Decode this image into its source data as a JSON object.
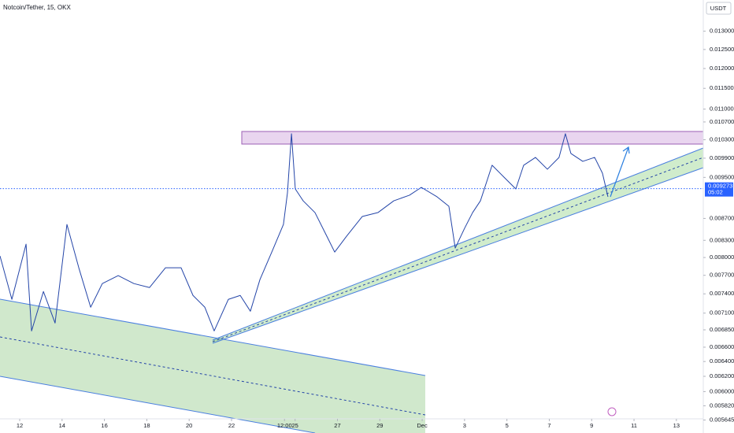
{
  "chart_data": {
    "type": "line",
    "title": "Notcoin/Tether, 15, OKX",
    "currency_button": "USDT",
    "last_price": 0.009273,
    "countdown": "05:02",
    "log_scale": true,
    "color": "#2445a8",
    "xlim": [
      -0.93,
      32.27
    ],
    "ylim": [
      0.00549,
      0.0139
    ],
    "xticks": [
      {
        "value": 0,
        "label": "12"
      },
      {
        "value": 2,
        "label": "14"
      },
      {
        "value": 4,
        "label": "16"
      },
      {
        "value": 6,
        "label": "18"
      },
      {
        "value": 8,
        "label": "20"
      },
      {
        "value": 10,
        "label": "22"
      },
      {
        "value": 12.5,
        "label": "12:00"
      },
      {
        "value": 13,
        "label": "25"
      },
      {
        "value": 15,
        "label": "27"
      },
      {
        "value": 17,
        "label": "29"
      },
      {
        "value": 19,
        "label": "Dec"
      },
      {
        "value": 21,
        "label": "3"
      },
      {
        "value": 23,
        "label": "5"
      },
      {
        "value": 25,
        "label": "7"
      },
      {
        "value": 27,
        "label": "9"
      },
      {
        "value": 29,
        "label": "11"
      },
      {
        "value": 31,
        "label": "13"
      }
    ],
    "yticks": [
      {
        "value": 0.013,
        "label": "0.013000"
      },
      {
        "value": 0.0125,
        "label": "0.012500"
      },
      {
        "value": 0.012,
        "label": "0.012000"
      },
      {
        "value": 0.0115,
        "label": "0.011500"
      },
      {
        "value": 0.011,
        "label": "0.011000"
      },
      {
        "value": 0.0107,
        "label": "0.010700"
      },
      {
        "value": 0.0103,
        "label": "0.010300"
      },
      {
        "value": 0.0099,
        "label": "0.009900"
      },
      {
        "value": 0.0095,
        "label": "0.009500"
      },
      {
        "value": 0.0087,
        "label": "0.008700"
      },
      {
        "value": 0.0083,
        "label": "0.008300"
      },
      {
        "value": 0.008,
        "label": "0.008000"
      },
      {
        "value": 0.0077,
        "label": "0.007700"
      },
      {
        "value": 0.0074,
        "label": "0.007400"
      },
      {
        "value": 0.0071,
        "label": "0.007100"
      },
      {
        "value": 0.00685,
        "label": "0.006850"
      },
      {
        "value": 0.0066,
        "label": "0.006600"
      },
      {
        "value": 0.0064,
        "label": "0.006400"
      },
      {
        "value": 0.0062,
        "label": "0.006200"
      },
      {
        "value": 0.006,
        "label": "0.006000"
      },
      {
        "value": 0.00582,
        "label": "0.005820"
      },
      {
        "value": 0.005645,
        "label": "0.005645"
      }
    ],
    "x": [
      -0.93,
      -0.37,
      0.3,
      0.56,
      1.12,
      1.67,
      2.23,
      2.79,
      3.35,
      3.9,
      4.65,
      5.39,
      6.13,
      6.88,
      7.62,
      8.18,
      8.74,
      9.18,
      9.85,
      10.41,
      10.89,
      11.34,
      11.9,
      12.45,
      12.64,
      12.83,
      13.01,
      13.38,
      13.94,
      14.5,
      14.87,
      15.43,
      16.17,
      16.91,
      17.66,
      18.4,
      18.96,
      19.7,
      20.26,
      20.56,
      21.0,
      21.38,
      21.75,
      22.3,
      22.86,
      23.42,
      23.79,
      24.35,
      24.91,
      25.46,
      25.76,
      26.02,
      26.58,
      27.14,
      27.51,
      27.77
    ],
    "values": [
      0.008026,
      0.007313,
      0.008233,
      0.006834,
      0.007437,
      0.006951,
      0.008588,
      0.007825,
      0.00719,
      0.007565,
      0.007695,
      0.007565,
      0.007501,
      0.007825,
      0.007825,
      0.007375,
      0.00719,
      0.006834,
      0.007313,
      0.007375,
      0.007129,
      0.007629,
      0.008094,
      0.008588,
      0.00919,
      0.010433,
      0.009268,
      0.009035,
      0.008809,
      0.008373,
      0.008094,
      0.008373,
      0.008735,
      0.008809,
      0.009035,
      0.009144,
      0.009299,
      0.009113,
      0.00893,
      0.008164,
      0.008516,
      0.008809,
      0.009035,
      0.009751,
      0.009506,
      0.009268,
      0.009751,
      0.009916,
      0.009668,
      0.009916,
      0.010433,
      0.010001,
      0.009833,
      0.009916,
      0.009586,
      0.009113
    ]
  }
}
